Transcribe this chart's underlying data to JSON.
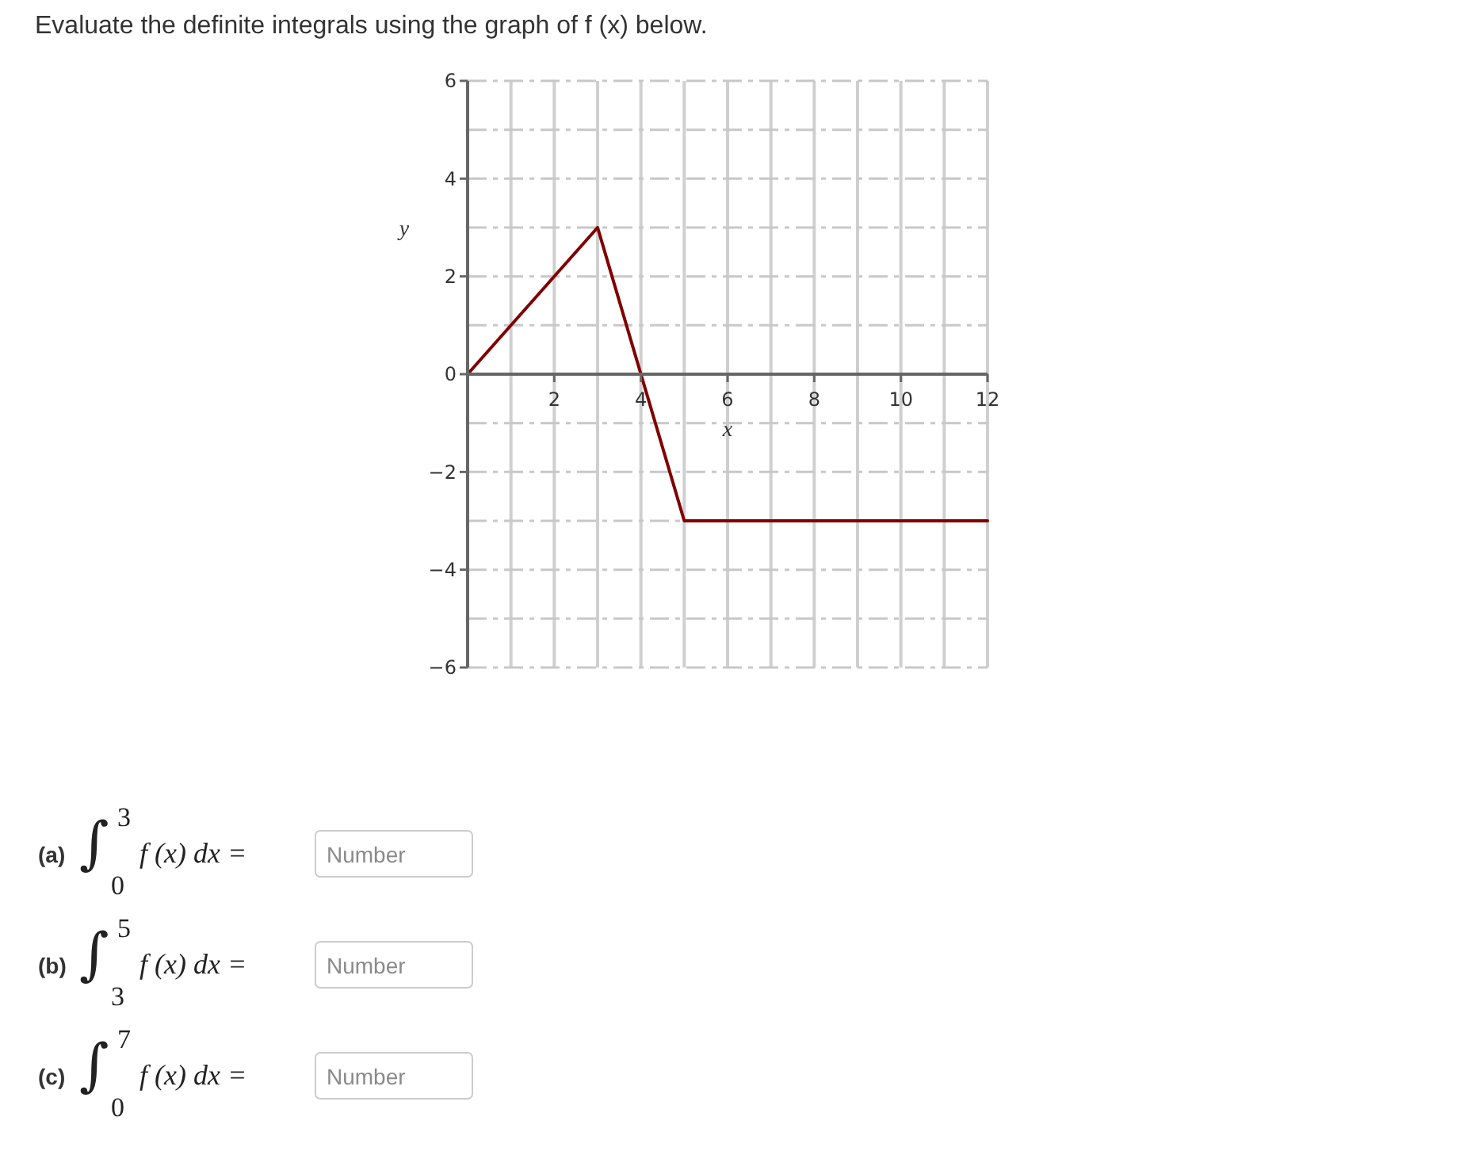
{
  "chart_data": {
    "type": "line",
    "title": "Evaluate the definite integrals using the graph of f (x) below.",
    "xlabel": "x",
    "ylabel": "y",
    "x": [
      0,
      3,
      4,
      5,
      12
    ],
    "values": [
      0,
      3,
      0,
      -3,
      -3
    ],
    "color": "#800000",
    "xlim": [
      0,
      12
    ],
    "ylim": [
      -6,
      6
    ],
    "xticks": [
      {
        "value": 1,
        "label": null
      },
      2,
      {
        "value": 3,
        "label": null
      },
      4,
      {
        "value": 5,
        "label": null
      },
      6,
      {
        "value": 7,
        "label": null
      },
      8,
      {
        "value": 9,
        "label": null
      },
      10,
      {
        "value": 11,
        "label": null
      },
      12
    ],
    "yticks": [
      -6,
      {
        "value": -5,
        "label": null
      },
      -4,
      {
        "value": -3,
        "label": null
      },
      -2,
      {
        "value": -1,
        "label": null
      },
      0,
      {
        "value": 1,
        "label": null
      },
      2,
      {
        "value": 3,
        "label": null
      },
      4,
      {
        "value": 5,
        "label": null
      },
      6
    ],
    "grid": true,
    "annotations": [
      "(a) ∫$_{0}$$^{3}$ f (x) dx =",
      "Number",
      "(b) ∫$_{3}$$^{5}$ f (x) dx =",
      "Number",
      "(c) ∫$_{0}$$^{7}$ f (x) dx =",
      "Number"
    ]
  }
}
